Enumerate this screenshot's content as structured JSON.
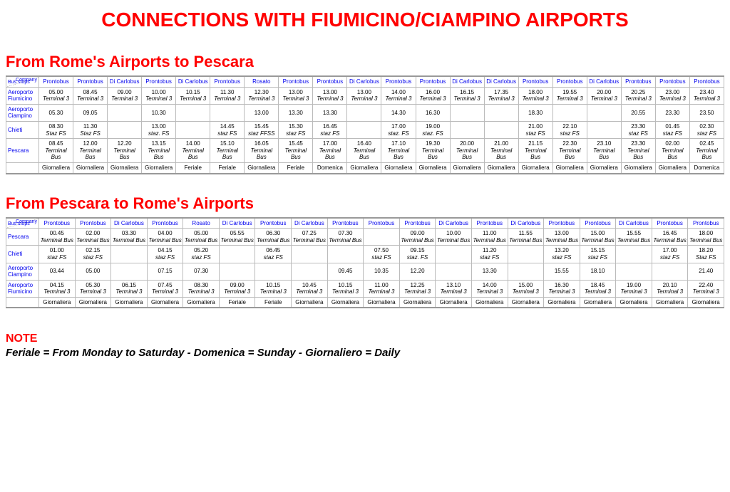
{
  "colors": {
    "accent": "#ff0000",
    "link": "#0000ee",
    "grid": "#bbbbbb",
    "bg": "#ffffff"
  },
  "main_title": "CONNECTIONS WITH FIUMICINO/CIAMPINO AIRPORTS",
  "corner": {
    "company": "Company",
    "stops": "Bus stops"
  },
  "table1": {
    "title": "From Rome's Airports to Pescara",
    "companies": [
      "Prontobus",
      "Prontobus",
      "Di Carlobus",
      "Prontobus",
      "Di Carlobus",
      "Prontobus",
      "Rosato",
      "Prontobus",
      "Prontobus",
      "Di Carlobus",
      "Prontobus",
      "Prontobus",
      "Di Carlobus",
      "Di Carlobus",
      "Prontobus",
      "Prontobus",
      "Di Carlobus",
      "Prontobus",
      "Prontobus",
      "Prontobus"
    ],
    "stops": [
      "Aeroporto Fiumicino",
      "Aeroporto Ciampino",
      "Chieti",
      "Pescara"
    ],
    "rows": [
      [
        [
          "05.00",
          "Terminal 3"
        ],
        [
          "08.45",
          "Terminal 3"
        ],
        [
          "09.00",
          "Terminal 3"
        ],
        [
          "10.00",
          "Terminal 3"
        ],
        [
          "10.15",
          "Terminal 3"
        ],
        [
          "11.30",
          "Terminal 3"
        ],
        [
          "12.30",
          "Terminal 3"
        ],
        [
          "13.00",
          "Terminal 3"
        ],
        [
          "13.00",
          "Terminal 3"
        ],
        [
          "13.00",
          "Terminal 3"
        ],
        [
          "14.00",
          "Terminal 3"
        ],
        [
          "16.00",
          "Terminal 3"
        ],
        [
          "16.15",
          "Terminal 3"
        ],
        [
          "17.35",
          "Terminal 3"
        ],
        [
          "18.00",
          "Terminal 3"
        ],
        [
          "19.55",
          "Terminal 3"
        ],
        [
          "20.00",
          "Terminal 3"
        ],
        [
          "20.25",
          "Terminal 3"
        ],
        [
          "23.00",
          "Terminal 3"
        ],
        [
          "23.40",
          "Terminal 3"
        ]
      ],
      [
        [
          "05.30",
          ""
        ],
        [
          "09.05",
          ""
        ],
        [
          "",
          ""
        ],
        [
          "10.30",
          ""
        ],
        [
          "",
          ""
        ],
        [
          "",
          ""
        ],
        [
          "13.00",
          ""
        ],
        [
          "13.30",
          ""
        ],
        [
          "13.30",
          ""
        ],
        [
          "",
          ""
        ],
        [
          "14.30",
          ""
        ],
        [
          "16.30",
          ""
        ],
        [
          "",
          ""
        ],
        [
          "",
          ""
        ],
        [
          "18.30",
          ""
        ],
        [
          "",
          ""
        ],
        [
          "",
          ""
        ],
        [
          "20.55",
          ""
        ],
        [
          "23.30",
          ""
        ],
        [
          "23.50",
          ""
        ]
      ],
      [
        [
          "08.30",
          "Staz FS"
        ],
        [
          "11.30",
          "Staz FS"
        ],
        [
          "",
          ""
        ],
        [
          "13.00",
          "staz. FS"
        ],
        [
          "",
          ""
        ],
        [
          "14.45",
          "staz FS"
        ],
        [
          "15.45",
          "staz FFSS"
        ],
        [
          "15.30",
          "staz FS"
        ],
        [
          "16.45",
          "staz FS"
        ],
        [
          "",
          ""
        ],
        [
          "17.00",
          "staz. FS"
        ],
        [
          "19.00",
          "staz. FS"
        ],
        [
          "",
          ""
        ],
        [
          "",
          ""
        ],
        [
          "21.00",
          "staz FS"
        ],
        [
          "22.10",
          "staz FS"
        ],
        [
          "",
          ""
        ],
        [
          "23.30",
          "staz FS"
        ],
        [
          "01.45",
          "staz FS"
        ],
        [
          "02.30",
          "staz FS"
        ]
      ],
      [
        [
          "08.45",
          "Terminal Bus"
        ],
        [
          "12.00",
          "Terminal Bus"
        ],
        [
          "12.20",
          "Terminal Bus"
        ],
        [
          "13.15",
          "Terminal Bus"
        ],
        [
          "14.00",
          "Terminal Bus"
        ],
        [
          "15.10",
          "Terminal Bus"
        ],
        [
          "16.05",
          "Terminal Bus"
        ],
        [
          "15.45",
          "Terminal Bus"
        ],
        [
          "17.00",
          "Terminal Bus"
        ],
        [
          "16.40",
          "Terminal Bus"
        ],
        [
          "17.10",
          "Terminal Bus"
        ],
        [
          "19.30",
          "Terminal Bus"
        ],
        [
          "20.00",
          "Terminal Bus"
        ],
        [
          "21.00",
          "Terminal Bus"
        ],
        [
          "21.15",
          "Terminal Bus"
        ],
        [
          "22.30",
          "Terminal Bus"
        ],
        [
          "23.10",
          "Terminal Bus"
        ],
        [
          "23.30",
          "Terminal Bus"
        ],
        [
          "02.00",
          "Terminal Bus"
        ],
        [
          "02.45",
          "Terminal Bus"
        ]
      ]
    ],
    "frequency": [
      "Giornaliera",
      "Giornaliera",
      "Giornaliera",
      "Giornaliera",
      "Feriale",
      "Feriale",
      "Giornaliera",
      "Feriale",
      "Domenica",
      "Giornaliera",
      "Giornaliera",
      "Giornaliera",
      "Giornaliera",
      "Giornaliera",
      "Giornaliera",
      "Giornaliera",
      "Giornaliera",
      "Giornaliera",
      "Giornaliera",
      "Domenica"
    ]
  },
  "table2": {
    "title": "From Pescara to Rome's Airports",
    "companies": [
      "Prontobus",
      "Prontobus",
      "Di Carlobus",
      "Prontobus",
      "Rosato",
      "Di Carlobus",
      "Prontobus",
      "Di Carlobus",
      "Prontobus",
      "Prontobus",
      "Prontobus",
      "Di Carlobus",
      "Prontobus",
      "Di Carlobus",
      "Prontobus",
      "Prontobus",
      "Di Carlobus",
      "Prontobus",
      "Prontobus"
    ],
    "stops": [
      "Pescara",
      "Chieti",
      "Aeroporto Ciampino",
      "Aeroporto Fiumicino"
    ],
    "rows": [
      [
        [
          "00.45",
          "Terminal Bus"
        ],
        [
          "02.00",
          "Terminal Bus"
        ],
        [
          "03.30",
          "Terminal Bus"
        ],
        [
          "04.00",
          "Terminal Bus"
        ],
        [
          "05.00",
          "Terminal Bus"
        ],
        [
          "05.55",
          "Terminal Bus"
        ],
        [
          "06.30",
          "Terminal Bus"
        ],
        [
          "07.25",
          "Terminal Bus"
        ],
        [
          "07.30",
          "Terminal Bus"
        ],
        [
          "",
          ""
        ],
        [
          "09.00",
          "Terminal Bus"
        ],
        [
          "10.00",
          "Terminal Bus"
        ],
        [
          "11.00",
          "Terminal Bus"
        ],
        [
          "11.55",
          "Terminal Bus"
        ],
        [
          "13.00",
          "Terminal Bus"
        ],
        [
          "15.00",
          "Terminal Bus"
        ],
        [
          "15.55",
          "Terminal Bus"
        ],
        [
          "16.45",
          "Terminal Bus"
        ],
        [
          "18.00",
          "Terminal Bus"
        ]
      ],
      [
        [
          "01.00",
          "staz FS"
        ],
        [
          "02.15",
          "staz FS"
        ],
        [
          "",
          ""
        ],
        [
          "04.15",
          "staz FS"
        ],
        [
          "05.20",
          "staz FS"
        ],
        [
          "",
          ""
        ],
        [
          "06.45",
          "staz FS"
        ],
        [
          "",
          ""
        ],
        [
          "",
          ""
        ],
        [
          "07.50",
          "staz FS"
        ],
        [
          "09.15",
          "staz. FS"
        ],
        [
          "",
          ""
        ],
        [
          "11.20",
          "staz FS"
        ],
        [
          "",
          ""
        ],
        [
          "13.20",
          "staz FS"
        ],
        [
          "15.15",
          "staz FS"
        ],
        [
          "",
          ""
        ],
        [
          "17.00",
          "staz FS"
        ],
        [
          "18.20",
          "Staz FS"
        ]
      ],
      [
        [
          "03.44",
          ""
        ],
        [
          "05.00",
          ""
        ],
        [
          "",
          ""
        ],
        [
          "07.15",
          ""
        ],
        [
          "07.30",
          ""
        ],
        [
          "",
          ""
        ],
        [
          "",
          ""
        ],
        [
          "",
          ""
        ],
        [
          "09.45",
          ""
        ],
        [
          "10.35",
          ""
        ],
        [
          "12.20",
          ""
        ],
        [
          "",
          ""
        ],
        [
          "13.30",
          ""
        ],
        [
          "",
          ""
        ],
        [
          "15.55",
          ""
        ],
        [
          "18.10",
          ""
        ],
        [
          "",
          ""
        ],
        [
          "",
          ""
        ],
        [
          "21.40",
          ""
        ]
      ],
      [
        [
          "04.15",
          "Terminal 3"
        ],
        [
          "05.30",
          "Terminal 3"
        ],
        [
          "06.15",
          "Terminal 3"
        ],
        [
          "07.45",
          "Terminal 3"
        ],
        [
          "08.30",
          "Terminal 3"
        ],
        [
          "09.00",
          "Terminal 3"
        ],
        [
          "10.15",
          "Terminal 3"
        ],
        [
          "10.45",
          "Terminal 3"
        ],
        [
          "10.15",
          "Terminal 3"
        ],
        [
          "11.00",
          "Terminal 3"
        ],
        [
          "12.25",
          "Terminal 3"
        ],
        [
          "13.10",
          "Terminal 3"
        ],
        [
          "14.00",
          "Terminal 3"
        ],
        [
          "15.00",
          "Terminal 3"
        ],
        [
          "16.30",
          "Terminal 3"
        ],
        [
          "18.45",
          "Terminal 3"
        ],
        [
          "19.00",
          "Terminal 3"
        ],
        [
          "20.10",
          "Terminal 3"
        ],
        [
          "22.40",
          "Terminal 3"
        ]
      ]
    ],
    "frequency": [
      "Giornaliera",
      "Giornaliera",
      "Giornaliera",
      "Giornaliera",
      "Giornaliera",
      "Feriale",
      "Feriale",
      "Giornaliera",
      "Giornaliera",
      "Giornaliera",
      "Giornaliera",
      "Giornaliera",
      "Giornaliera",
      "Giornaliera",
      "Giornaliera",
      "Giornaliera",
      "Giornaliera",
      "Giornaliera",
      "Giornaliera"
    ]
  },
  "note": {
    "head": "NOTE",
    "body": "Feriale = From Monday to Saturday  -  Domenica = Sunday  -  Giornaliero = Daily"
  }
}
